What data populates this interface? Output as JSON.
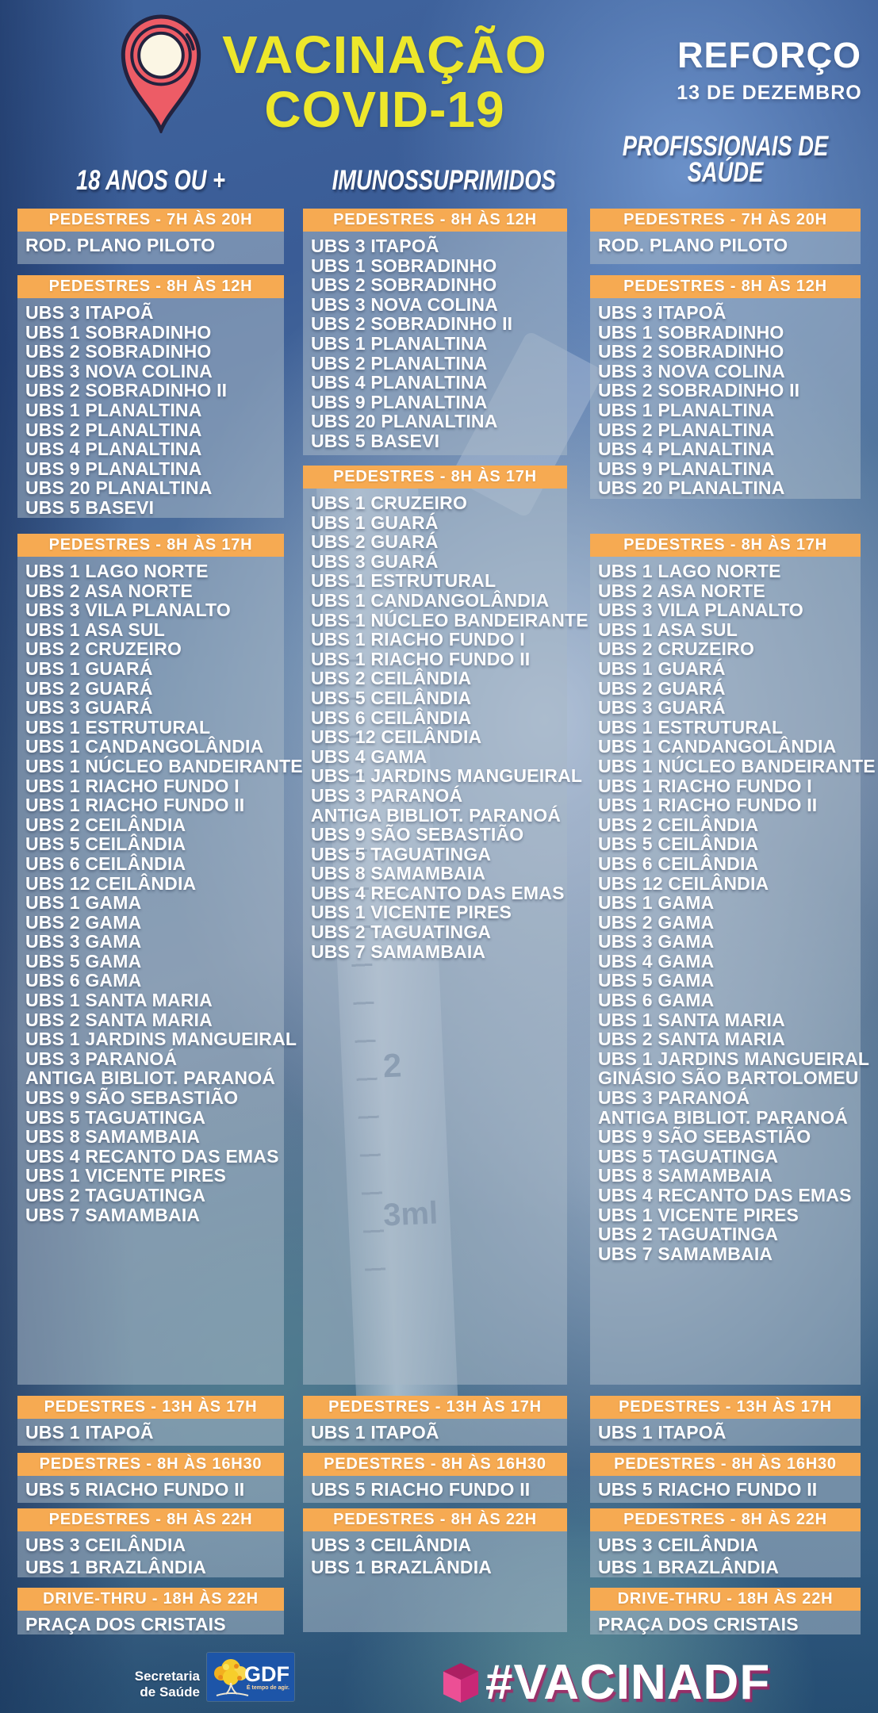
{
  "header": {
    "title_line1": "VACINAÇÃO",
    "title_line2": "COVID-19",
    "badge_title": "REFORÇO",
    "badge_subtitle": "13 DE DEZEMBRO"
  },
  "background": {
    "photo_description": "hands holding syringe",
    "syringe_scale_labels": [
      "2",
      "3ml"
    ]
  },
  "colors": {
    "schedule_bar_orange": "#F6AA52",
    "title_yellow": "#EDE72B",
    "hashtag_pink": "#D92C86",
    "panel_gray_blue": "#A8B8C6",
    "gdf_blue": "#1D55A8",
    "pin_red": "#ED5C66"
  },
  "columns": [
    {
      "title": "18 ANOS OU +",
      "sections": [
        {
          "header": "PEDESTRES - 7H ÀS 20H",
          "items": [
            "ROD. PLANO PILOTO"
          ]
        },
        {
          "header": "PEDESTRES - 8H ÀS 12H",
          "items": [
            "UBS 3 ITAPOÃ",
            "UBS 1 SOBRADINHO",
            "UBS 2 SOBRADINHO",
            "UBS 3 NOVA COLINA",
            "UBS 2 SOBRADINHO II",
            "UBS 1 PLANALTINA",
            "UBS 2 PLANALTINA",
            "UBS 4 PLANALTINA",
            "UBS 9 PLANALTINA",
            "UBS 20 PLANALTINA",
            "UBS 5 BASEVI"
          ]
        },
        {
          "header": "PEDESTRES - 8H ÀS 17H",
          "items": [
            "UBS 1 LAGO NORTE",
            "UBS 2 ASA NORTE",
            "UBS 3 VILA PLANALTO",
            "UBS 1 ASA SUL",
            "UBS 2 CRUZEIRO",
            "UBS 1 GUARÁ",
            "UBS 2 GUARÁ",
            "UBS 3 GUARÁ",
            "UBS 1 ESTRUTURAL",
            "UBS 1 CANDANGOLÂNDIA",
            "UBS 1 NÚCLEO BANDEIRANTE",
            "UBS 1 RIACHO FUNDO I",
            "UBS 1 RIACHO FUNDO II",
            "UBS 2 CEILÂNDIA",
            "UBS 5 CEILÂNDIA",
            "UBS 6 CEILÂNDIA",
            "UBS 12 CEILÂNDIA",
            "UBS 1 GAMA",
            "UBS 2 GAMA",
            "UBS 3 GAMA",
            "UBS 5 GAMA",
            "UBS 6 GAMA",
            "UBS 1 SANTA MARIA",
            "UBS 2 SANTA MARIA",
            "UBS 1 JARDINS MANGUEIRAL",
            "UBS 3 PARANOÁ",
            "ANTIGA BIBLIOT. PARANOÁ",
            "UBS 9 SÃO SEBASTIÃO",
            "UBS 5 TAGUATINGA",
            "UBS 8 SAMAMBAIA",
            "UBS 4 RECANTO DAS EMAS",
            "UBS 1 VICENTE PIRES",
            "UBS 2 TAGUATINGA",
            "UBS 7 SAMAMBAIA"
          ]
        },
        {
          "header": "PEDESTRES - 13H ÀS 17H",
          "items": [
            "UBS 1 ITAPOÃ"
          ]
        },
        {
          "header": "PEDESTRES - 8H ÀS 16H30",
          "items": [
            "UBS 5 RIACHO FUNDO II"
          ]
        },
        {
          "header": "PEDESTRES - 8H ÀS 22H",
          "items": [
            "UBS 3 CEILÂNDIA",
            "UBS 1 BRAZLÂNDIA"
          ]
        },
        {
          "header": "DRIVE-THRU - 18H ÀS 22H",
          "items": [
            "PRAÇA DOS CRISTAIS"
          ]
        }
      ]
    },
    {
      "title": "IMUNOSSUPRIMIDOS",
      "sections": [
        {
          "header": "PEDESTRES - 8H ÀS 12H",
          "items": [
            "UBS 3 ITAPOÃ",
            "UBS 1 SOBRADINHO",
            "UBS 2 SOBRADINHO",
            "UBS 3 NOVA COLINA",
            "UBS 2 SOBRADINHO II",
            "UBS 1 PLANALTINA",
            "UBS 2 PLANALTINA",
            "UBS 4 PLANALTINA",
            "UBS 9 PLANALTINA",
            "UBS 20 PLANALTINA",
            "UBS 5 BASEVI"
          ]
        },
        {
          "header": "PEDESTRES - 8H ÀS 17H",
          "items": [
            "UBS 1 CRUZEIRO",
            "UBS 1 GUARÁ",
            "UBS 2 GUARÁ",
            "UBS 3 GUARÁ",
            "UBS 1 ESTRUTURAL",
            "UBS 1 CANDANGOLÂNDIA",
            "UBS 1 NÚCLEO BANDEIRANTE",
            "UBS 1 RIACHO FUNDO I",
            "UBS 1 RIACHO FUNDO II",
            "UBS 2 CEILÂNDIA",
            "UBS 5 CEILÂNDIA",
            "UBS 6 CEILÂNDIA",
            "UBS 12 CEILÂNDIA",
            "UBS 4 GAMA",
            "UBS 1 JARDINS MANGUEIRAL",
            "UBS 3 PARANOÁ",
            "ANTIGA BIBLIOT. PARANOÁ",
            "UBS 9 SÃO SEBASTIÃO",
            "UBS 5 TAGUATINGA",
            "UBS 8 SAMAMBAIA",
            "UBS 4 RECANTO DAS EMAS",
            "UBS 1 VICENTE PIRES",
            "UBS 2 TAGUATINGA",
            "UBS 7 SAMAMBAIA"
          ]
        },
        {
          "header": "PEDESTRES - 13H ÀS 17H",
          "items": [
            "UBS 1 ITAPOÃ"
          ]
        },
        {
          "header": "PEDESTRES - 8H ÀS 16H30",
          "items": [
            "UBS 5 RIACHO FUNDO II"
          ]
        },
        {
          "header": "PEDESTRES - 8H ÀS 22H",
          "items": [
            "UBS 3 CEILÂNDIA",
            "UBS 1 BRAZLÂNDIA"
          ]
        }
      ]
    },
    {
      "title": "PROFISSIONAIS DE SAÚDE",
      "sections": [
        {
          "header": "PEDESTRES - 7H ÀS 20H",
          "items": [
            "ROD. PLANO PILOTO"
          ]
        },
        {
          "header": "PEDESTRES - 8H ÀS 12H",
          "items": [
            "UBS 3 ITAPOÃ",
            "UBS 1 SOBRADINHO",
            "UBS 2 SOBRADINHO",
            "UBS 3 NOVA COLINA",
            "UBS 2 SOBRADINHO II",
            "UBS 1 PLANALTINA",
            "UBS 2 PLANALTINA",
            "UBS 4 PLANALTINA",
            "UBS 9 PLANALTINA",
            "UBS 20 PLANALTINA"
          ]
        },
        {
          "header": "PEDESTRES - 8H ÀS 17H",
          "items": [
            "UBS 1 LAGO NORTE",
            "UBS 2 ASA NORTE",
            "UBS 3 VILA PLANALTO",
            "UBS 1 ASA SUL",
            "UBS 2 CRUZEIRO",
            "UBS 1 GUARÁ",
            "UBS 2 GUARÁ",
            "UBS 3 GUARÁ",
            "UBS 1 ESTRUTURAL",
            "UBS 1 CANDANGOLÂNDIA",
            "UBS 1 NÚCLEO BANDEIRANTE",
            "UBS 1 RIACHO FUNDO I",
            "UBS 1 RIACHO FUNDO II",
            "UBS 2 CEILÂNDIA",
            "UBS 5 CEILÂNDIA",
            "UBS 6 CEILÂNDIA",
            "UBS 12 CEILÂNDIA",
            "UBS 1 GAMA",
            "UBS 2 GAMA",
            "UBS 3 GAMA",
            "UBS 4 GAMA",
            "UBS 5 GAMA",
            "UBS 6 GAMA",
            "UBS 1 SANTA MARIA",
            "UBS 2 SANTA MARIA",
            "UBS 1 JARDINS MANGUEIRAL",
            "GINÁSIO SÃO BARTOLOMEU",
            "UBS 3 PARANOÁ",
            "ANTIGA BIBLIOT. PARANOÁ",
            "UBS 9 SÃO SEBASTIÃO",
            "UBS 5 TAGUATINGA",
            "UBS 8 SAMAMBAIA",
            "UBS 4 RECANTO DAS EMAS",
            "UBS 1 VICENTE PIRES",
            "UBS 2 TAGUATINGA",
            "UBS 7 SAMAMBAIA"
          ]
        },
        {
          "header": "PEDESTRES - 13H ÀS 17H",
          "items": [
            "UBS 1 ITAPOÃ"
          ]
        },
        {
          "header": "PEDESTRES - 8H ÀS 16H30",
          "items": [
            "UBS 5 RIACHO FUNDO II"
          ]
        },
        {
          "header": "PEDESTRES - 8H ÀS 22H",
          "items": [
            "UBS 3 CEILÂNDIA",
            "UBS 1 BRAZLÂNDIA"
          ]
        },
        {
          "header": "DRIVE-THRU - 18H ÀS 22H",
          "items": [
            "PRAÇA DOS CRISTAIS"
          ]
        }
      ]
    }
  ],
  "footer": {
    "secretaria_line1": "Secretaria",
    "secretaria_line2": "de Saúde",
    "gdf_label": "GDF",
    "gdf_tagline": "É tempo de agir.",
    "hashtag": "#VACINADF"
  }
}
